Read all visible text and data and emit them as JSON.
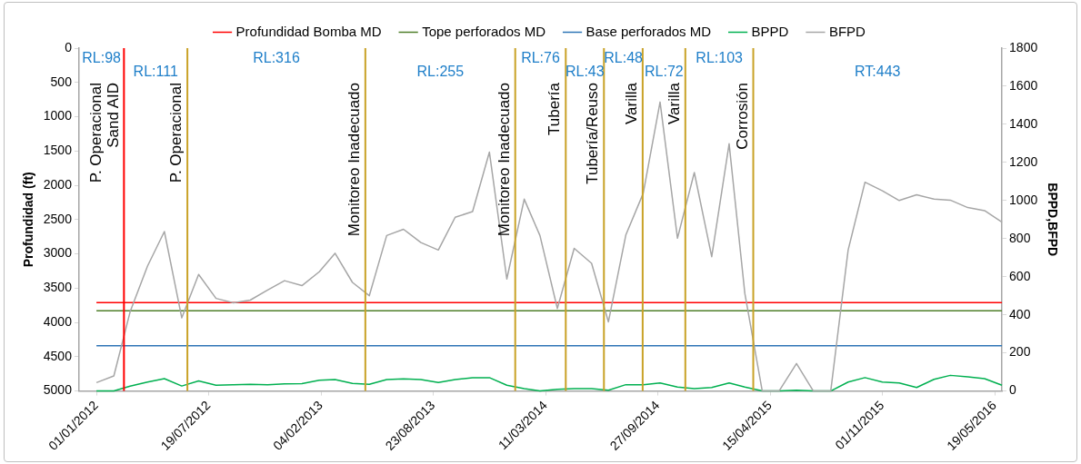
{
  "chart_data": {
    "type": "line",
    "ylabel": "Profundidad (ft)",
    "y2label": "BPPD,BFPD",
    "x": [
      "2012-01",
      "2012-02",
      "2012-03",
      "2012-04",
      "2012-05",
      "2012-06",
      "2012-07",
      "2012-08",
      "2012-09",
      "2012-10",
      "2012-11",
      "2012-12",
      "2013-01",
      "2013-02",
      "2013-03",
      "2013-04",
      "2013-05",
      "2013-06",
      "2013-07",
      "2013-08",
      "2013-09",
      "2013-10",
      "2013-11",
      "2013-12",
      "2014-01",
      "2014-02",
      "2014-03",
      "2014-04",
      "2014-05",
      "2014-06",
      "2014-07",
      "2014-08",
      "2014-09",
      "2014-10",
      "2014-11",
      "2014-12",
      "2015-01",
      "2015-02",
      "2015-03",
      "2015-04",
      "2015-05",
      "2015-06",
      "2015-07",
      "2015-08",
      "2015-09",
      "2015-10",
      "2015-11",
      "2015-12",
      "2016-01",
      "2016-02",
      "2016-03",
      "2016-04",
      "2016-05",
      "2016-06"
    ],
    "series": [
      {
        "name": "Profundidad Bomba MD",
        "color": "#ff0000",
        "x": [
          "2012-01",
          "2016-06"
        ],
        "values": [
          3710,
          3710
        ],
        "axis": "y"
      },
      {
        "name": "Tope perforados MD",
        "color": "#4f7f2a",
        "x": [
          "2012-01",
          "2016-06"
        ],
        "values": [
          3830,
          3830
        ],
        "axis": "y"
      },
      {
        "name": "Base perforados MD",
        "color": "#2e75b6",
        "x": [
          "2012-01",
          "2016-06"
        ],
        "values": [
          4340,
          4340
        ],
        "axis": "y"
      },
      {
        "name": "BPPD",
        "color": "#00b050",
        "axis": "y2",
        "values": [
          0,
          0,
          25,
          47,
          65,
          26,
          53,
          30,
          33,
          35,
          33,
          37,
          39,
          56,
          60,
          40,
          35,
          60,
          63,
          60,
          44,
          60,
          70,
          70,
          30,
          12,
          0,
          9,
          12,
          12,
          4,
          33,
          33,
          42,
          21,
          12,
          18,
          42,
          21,
          0,
          0,
          4,
          0,
          0,
          47,
          70,
          47,
          42,
          18,
          61,
          82,
          74,
          65,
          30
        ]
      },
      {
        "name": "BFPD",
        "color": "#a6a6a6",
        "axis": "y2",
        "values": [
          44,
          79,
          416,
          656,
          837,
          384,
          612,
          486,
          463,
          477,
          530,
          579,
          553,
          626,
          723,
          570,
          500,
          816,
          849,
          779,
          740,
          912,
          942,
          1254,
          588,
          1007,
          816,
          433,
          749,
          670,
          363,
          819,
          1038,
          1517,
          802,
          1147,
          705,
          1298,
          512,
          0,
          0,
          144,
          0,
          0,
          740,
          1096,
          1051,
          1000,
          1030,
          1007,
          1002,
          963,
          947,
          886
        ]
      }
    ],
    "xlim": [
      "2011-12-01",
      "2016-06-01"
    ],
    "xticks": [
      {
        "value": "2012-01-01",
        "label": "01/01/2012"
      },
      {
        "value": "2012-07-19",
        "label": "19/07/2012"
      },
      {
        "value": "2013-02-04",
        "label": "04/02/2013"
      },
      {
        "value": "2013-08-23",
        "label": "23/08/2013"
      },
      {
        "value": "2014-03-11",
        "label": "11/03/2014"
      },
      {
        "value": "2014-09-27",
        "label": "27/09/2014"
      },
      {
        "value": "2015-04-15",
        "label": "15/04/2015"
      },
      {
        "value": "2015-11-01",
        "label": "01/11/2015"
      },
      {
        "value": "2016-05-19",
        "label": "19/05/2016"
      }
    ],
    "ylim": [
      5000,
      0
    ],
    "yticks": [
      0,
      500,
      1000,
      1500,
      2000,
      2500,
      3000,
      3500,
      4000,
      4500,
      5000
    ],
    "y2lim": [
      0,
      1800
    ],
    "y2ticks": [
      0,
      200,
      400,
      600,
      800,
      1000,
      1200,
      1400,
      1600,
      1800
    ],
    "ref_lines": [
      {
        "axis": "x",
        "value": "2012-02-19",
        "label": "P. Operacional\nSand AID",
        "color": "#ff0000"
      },
      {
        "axis": "x",
        "value": "2012-06-11",
        "label": "P. Operacional",
        "color": "#c9a227"
      },
      {
        "axis": "x",
        "value": "2013-04-24",
        "label": "Monitoreo Inadecuado",
        "color": "#c9a227"
      },
      {
        "axis": "x",
        "value": "2014-01-16",
        "label": "Monitoreo Inadecuado",
        "color": "#c9a227"
      },
      {
        "axis": "x",
        "value": "2014-04-16",
        "label": "Tubería",
        "color": "#c9a227"
      },
      {
        "axis": "x",
        "value": "2014-06-23",
        "label": "Tubería/Reuso",
        "color": "#c9a227"
      },
      {
        "axis": "x",
        "value": "2014-08-31",
        "label": "Varilla",
        "color": "#c9a227"
      },
      {
        "axis": "x",
        "value": "2014-11-15",
        "label": "Varilla",
        "color": "#c9a227"
      },
      {
        "axis": "x",
        "value": "2015-03-16",
        "label": "Corrosión",
        "color": "#c9a227"
      }
    ],
    "annotations": [
      "RL:98",
      "RL:111",
      "RL:316",
      "RL:255",
      "RL:76",
      "RL:43",
      "RL:48",
      "RL:72",
      "RL:103",
      "RT:443"
    ],
    "legend": "top",
    "grid": false,
    "marker": "none",
    "line_style": "solid"
  }
}
